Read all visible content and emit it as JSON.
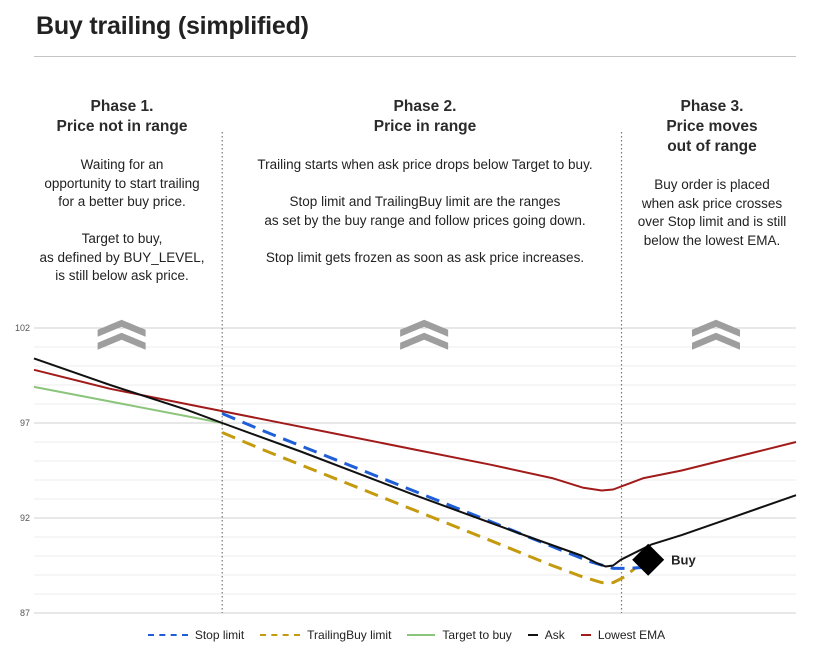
{
  "header": {
    "title": "Buy trailing (simplified)"
  },
  "phases": [
    {
      "title_lines": [
        "Phase 1.",
        "Price not in range"
      ],
      "paragraphs": [
        [
          "Waiting for an",
          "opportunity to start trailing",
          "for a better buy price."
        ],
        [
          "Target to buy,",
          "as defined by BUY_LEVEL,",
          "is still below ask price."
        ]
      ]
    },
    {
      "title_lines": [
        "Phase 2.",
        "Price in range"
      ],
      "paragraphs": [
        [
          "Trailing starts when ask price drops below Target to buy."
        ],
        [
          "Stop limit and TrailingBuy limit are the ranges",
          "as set by the buy range and follow prices going down."
        ],
        [
          "Stop limit gets frozen as soon as ask price increases."
        ]
      ]
    },
    {
      "title_lines": [
        "Phase 3.",
        "Price moves",
        "out of range"
      ],
      "paragraphs": [
        [
          "Buy order is placed",
          "when ask price crosses",
          "over Stop limit and is still",
          "below the lowest EMA."
        ]
      ]
    }
  ],
  "chart_data": {
    "type": "line",
    "ylim": [
      87,
      103
    ],
    "xlim": [
      0,
      100
    ],
    "y_ticks": [
      "102",
      "97",
      "92",
      "87"
    ],
    "y_tick_values": [
      102,
      97,
      92,
      87
    ],
    "minor_grid_step": 1,
    "phase_dividers_x": [
      24.7,
      77.1
    ],
    "series": [
      {
        "name": "Stop limit",
        "color": "#1f5ed6",
        "dash": true,
        "x": [
          24.7,
          30,
          40,
          50,
          60,
          68,
          73,
          76,
          78,
          80
        ],
        "y": [
          97.5,
          96.6,
          95.0,
          93.4,
          91.8,
          90.5,
          89.7,
          89.35,
          89.35,
          89.4
        ]
      },
      {
        "name": "TrailingBuy limit",
        "color": "#c49a0f",
        "dash": true,
        "x": [
          24.7,
          30,
          40,
          50,
          60,
          68,
          72,
          74.5,
          76,
          77.5,
          79
        ],
        "y": [
          96.5,
          95.6,
          94.0,
          92.4,
          90.8,
          89.5,
          88.9,
          88.6,
          88.6,
          88.9,
          89.4
        ]
      },
      {
        "name": "Target to buy",
        "color": "#8bc47b",
        "dash": false,
        "x": [
          0,
          24.7
        ],
        "y": [
          98.9,
          97.0
        ]
      },
      {
        "name": "Ask",
        "color": "#111111",
        "dash": false,
        "x": [
          0,
          10,
          20,
          24.7,
          35,
          50,
          65,
          72,
          74,
          75,
          76,
          77,
          79,
          81,
          85,
          90,
          95,
          100
        ],
        "y": [
          100.4,
          99.0,
          97.7,
          97.0,
          95.5,
          93.2,
          91.0,
          90.0,
          89.6,
          89.45,
          89.5,
          89.8,
          90.2,
          90.6,
          91.1,
          91.8,
          92.5,
          93.2
        ]
      },
      {
        "name": "Lowest EMA",
        "color": "#a11b1b",
        "dash": false,
        "x": [
          0,
          10,
          20,
          30,
          40,
          50,
          60,
          68,
          72,
          74.5,
          76,
          78,
          80,
          85,
          90,
          95,
          100
        ],
        "y": [
          99.8,
          98.8,
          98.0,
          97.2,
          96.4,
          95.6,
          94.8,
          94.1,
          93.6,
          93.45,
          93.5,
          93.8,
          94.1,
          94.5,
          95.0,
          95.5,
          96.0
        ]
      }
    ],
    "annotations": [
      {
        "type": "marker",
        "shape": "diamond",
        "label": "Buy",
        "x": 80.6,
        "y": 89.8
      },
      {
        "type": "chevrons",
        "x": [
          11.5,
          51.2,
          89.5
        ],
        "y": 101.8
      }
    ]
  }
}
